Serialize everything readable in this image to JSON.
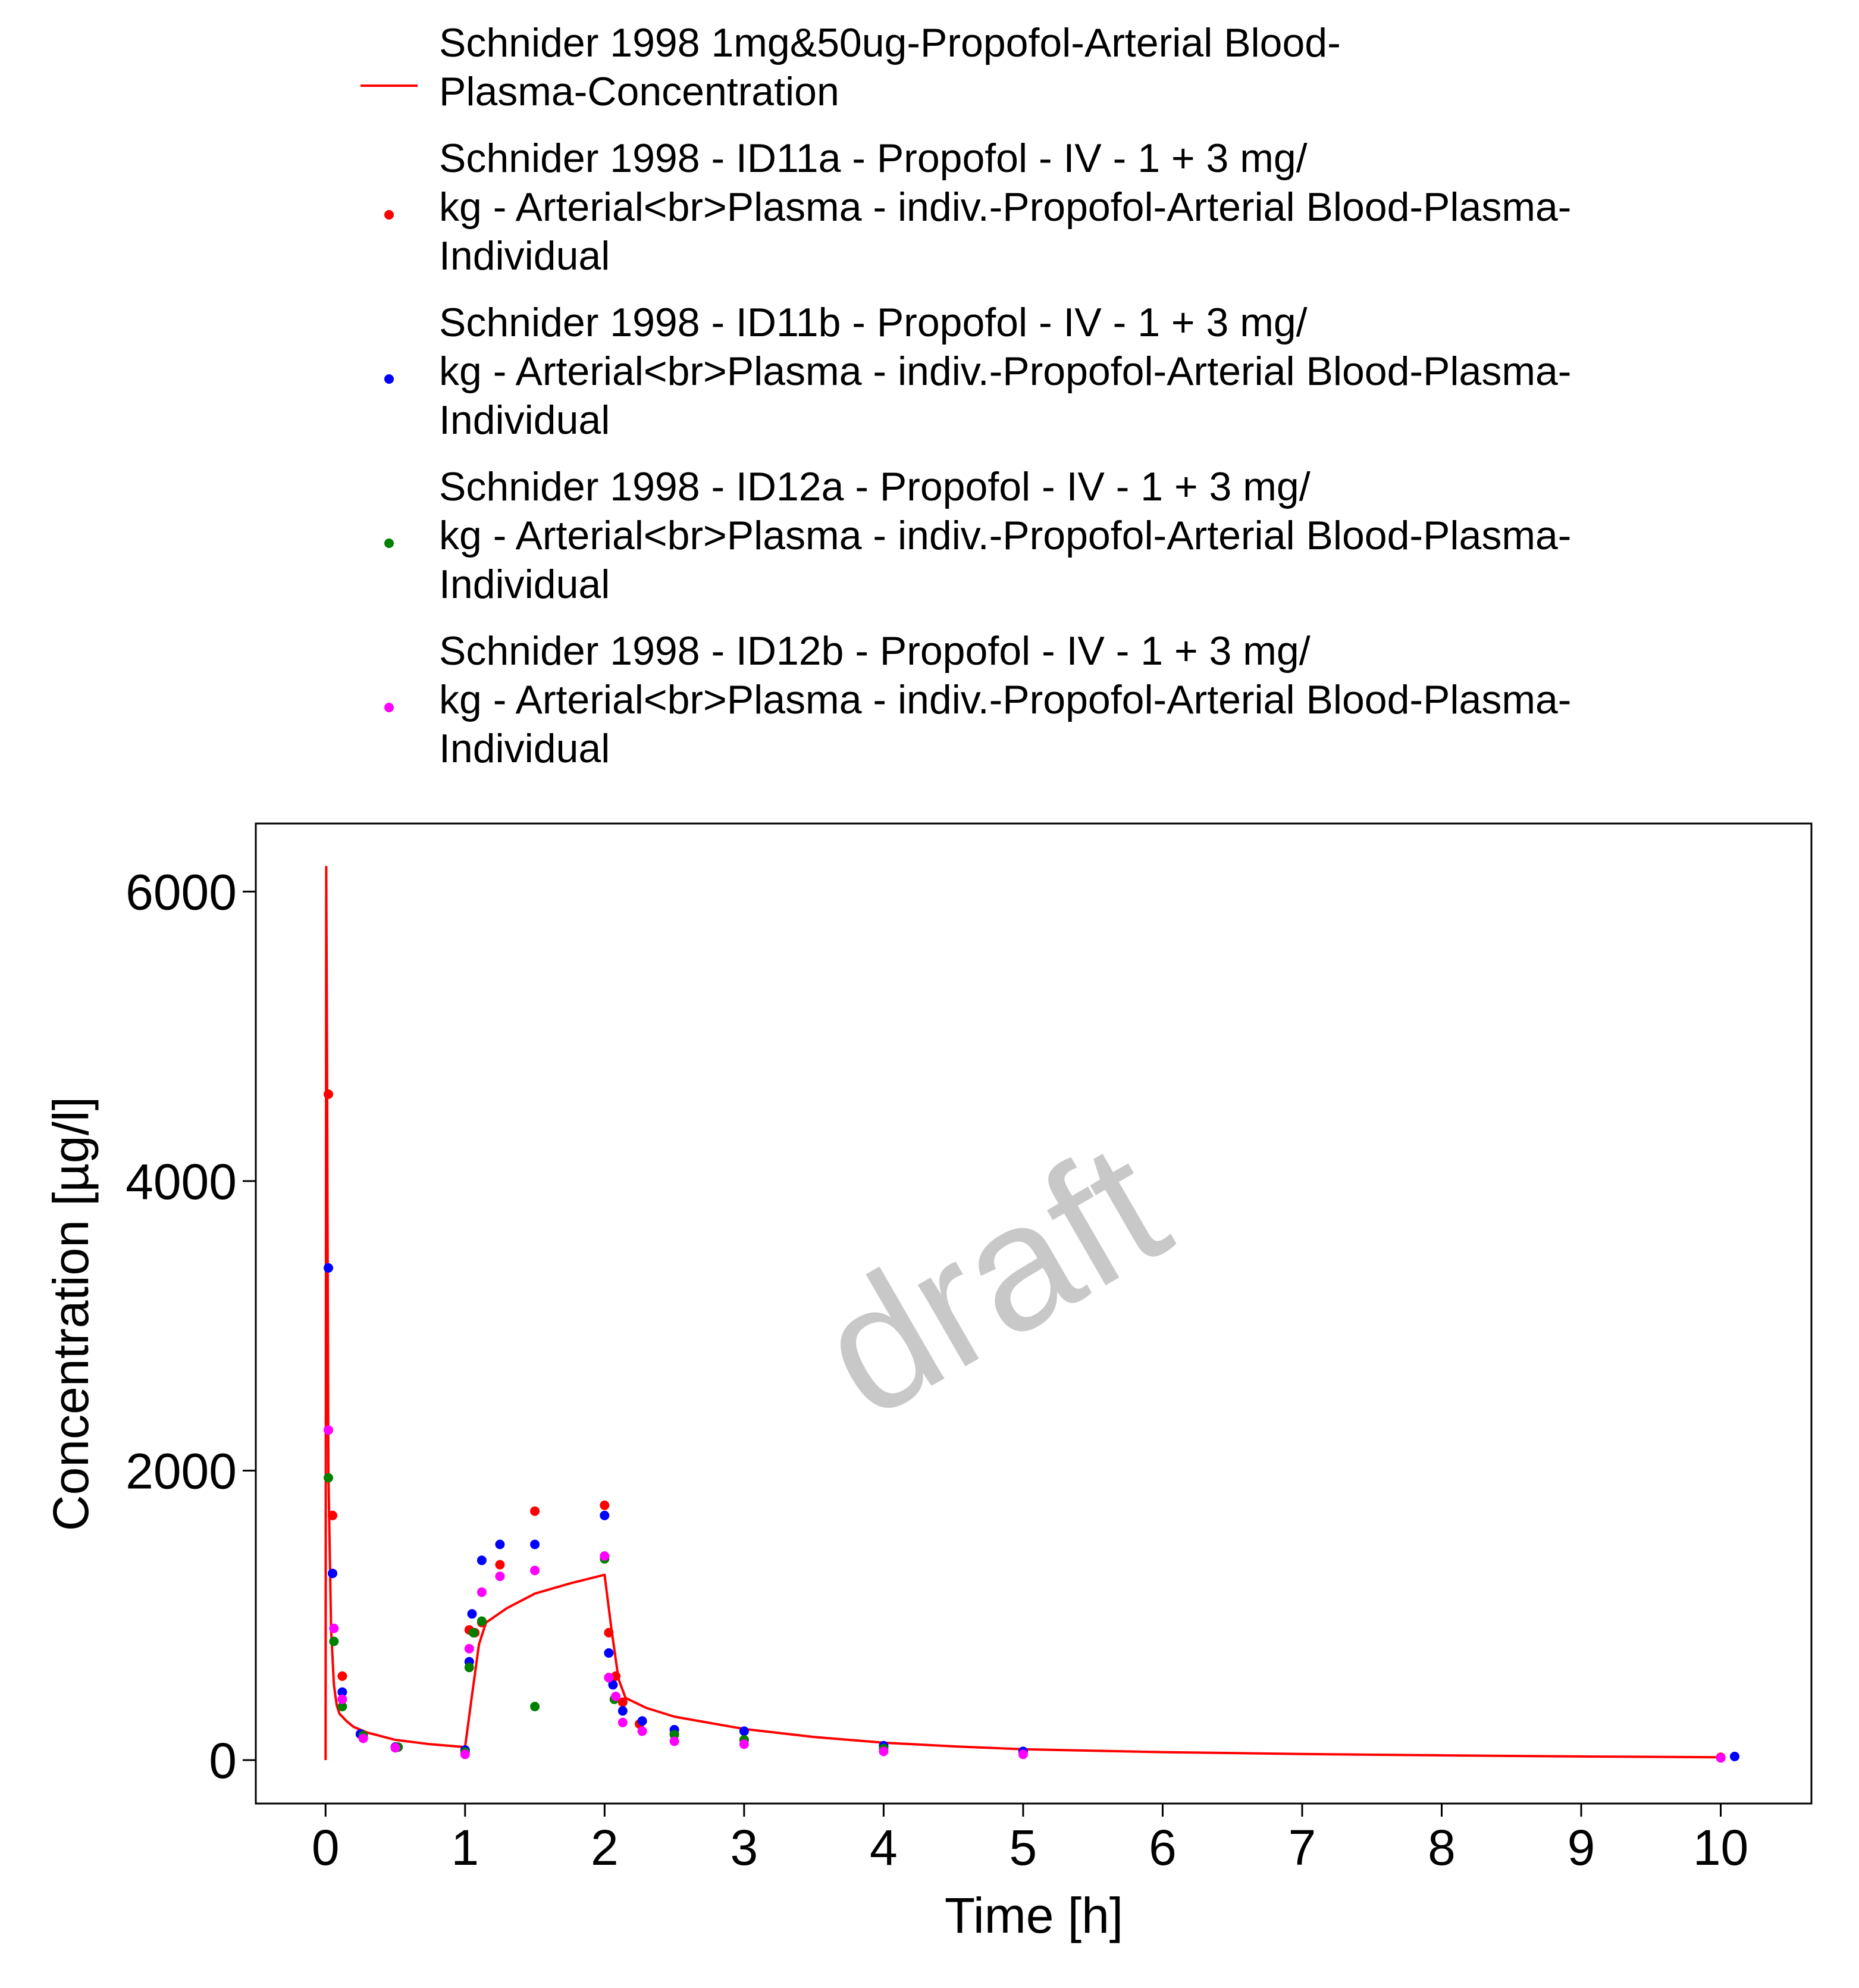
{
  "chart_data": {
    "type": "line",
    "xlabel": "Time [h]",
    "ylabel": "Concentration [µg/l]",
    "xlim": [
      -0.5,
      10.65
    ],
    "ylim": [
      -300,
      6470
    ],
    "xticks": [
      0,
      1,
      2,
      3,
      4,
      5,
      6,
      7,
      8,
      9,
      10
    ],
    "yticks": [
      0,
      2000,
      4000,
      6000
    ],
    "grid": false,
    "legend_position": "top",
    "watermark": "draft",
    "colors": {
      "line": "#ff0000",
      "id11a": "#ff0000",
      "id11b": "#0000ff",
      "id12a": "#008000",
      "id12b": "#ff00ff"
    },
    "series": [
      {
        "key": "line",
        "type": "line",
        "legend_lines": [
          "Schnider 1998 1mg&50ug-Propofol-Arterial Blood-",
          "Plasma-Concentration"
        ],
        "x": [
          0,
          0.005,
          0.01,
          0.02,
          0.04,
          0.06,
          0.08,
          0.1,
          0.15,
          0.2,
          0.3,
          0.5,
          0.75,
          1.0,
          1.05,
          1.1,
          1.15,
          1.3,
          1.5,
          1.75,
          2.0,
          2.05,
          2.1,
          2.15,
          2.3,
          2.5,
          3.0,
          3.5,
          4.0,
          4.5,
          5.0,
          6.0,
          7.0,
          8.0,
          9.0,
          10.0
        ],
        "y": [
          0,
          6170,
          5000,
          2000,
          900,
          520,
          380,
          320,
          270,
          230,
          190,
          140,
          110,
          90,
          450,
          800,
          950,
          1050,
          1150,
          1220,
          1280,
          900,
          560,
          430,
          360,
          300,
          215,
          160,
          120,
          95,
          75,
          55,
          42,
          33,
          25,
          20
        ]
      },
      {
        "key": "id11a",
        "type": "scatter",
        "legend_lines": [
          "Schnider 1998 - ID11a - Propofol - IV - 1 + 3 mg/",
          "kg - Arterial<br>Plasma - indiv.-Propofol-Arterial Blood-Plasma-",
          "Individual"
        ],
        "x": [
          0.02,
          0.05,
          0.12,
          0.25,
          0.5,
          1.0,
          1.03,
          1.07,
          1.12,
          1.25,
          1.5,
          2.0,
          2.03,
          2.08,
          2.13,
          2.25,
          2.5,
          3.0,
          4.0,
          5.0,
          10.0
        ],
        "y": [
          4600,
          1690,
          580,
          180,
          90,
          65,
          900,
          880,
          950,
          1350,
          1720,
          1760,
          880,
          580,
          400,
          250,
          180,
          140,
          90,
          55,
          20
        ]
      },
      {
        "key": "id11b",
        "type": "scatter",
        "legend_lines": [
          "Schnider 1998 - ID11b - Propofol - IV - 1 + 3 mg/",
          "kg - Arterial<br>Plasma - indiv.-Propofol-Arterial Blood-Plasma-",
          "Individual"
        ],
        "x": [
          0.02,
          0.05,
          0.12,
          0.25,
          0.5,
          1.0,
          1.03,
          1.05,
          1.12,
          1.25,
          1.5,
          2.0,
          2.03,
          2.06,
          2.13,
          2.27,
          2.5,
          3.0,
          4.0,
          5.0,
          10.1
        ],
        "y": [
          3400,
          1290,
          470,
          180,
          90,
          70,
          680,
          1010,
          1380,
          1490,
          1490,
          1690,
          740,
          520,
          340,
          270,
          210,
          200,
          100,
          60,
          25
        ]
      },
      {
        "key": "id12a",
        "type": "scatter",
        "legend_lines": [
          "Schnider 1998 - ID12a - Propofol - IV - 1 + 3 mg/",
          "kg - Arterial<br>Plasma - indiv.-Propofol-Arterial Blood-Plasma-",
          "Individual"
        ],
        "x": [
          0.02,
          0.06,
          0.12,
          0.27,
          0.52,
          1.0,
          1.03,
          1.06,
          1.12,
          1.5,
          2.0,
          2.03,
          2.07,
          2.5,
          3.0,
          4.0
        ],
        "y": [
          1950,
          820,
          370,
          170,
          90,
          55,
          640,
          880,
          960,
          370,
          1390,
          570,
          420,
          175,
          140,
          80
        ]
      },
      {
        "key": "id12b",
        "type": "scatter",
        "legend_lines": [
          "Schnider 1998 - ID12b - Propofol - IV - 1 + 3 mg/",
          "kg - Arterial<br>Plasma - indiv.-Propofol-Arterial Blood-Plasma-",
          "Individual"
        ],
        "x": [
          0.02,
          0.06,
          0.12,
          0.27,
          0.5,
          1.0,
          1.03,
          1.12,
          1.25,
          1.5,
          2.0,
          2.03,
          2.08,
          2.13,
          2.27,
          2.5,
          3.0,
          4.0,
          5.0,
          10.0
        ],
        "y": [
          2280,
          910,
          420,
          150,
          85,
          40,
          770,
          1160,
          1270,
          1310,
          1410,
          570,
          440,
          260,
          200,
          130,
          110,
          60,
          40,
          15
        ]
      }
    ]
  }
}
